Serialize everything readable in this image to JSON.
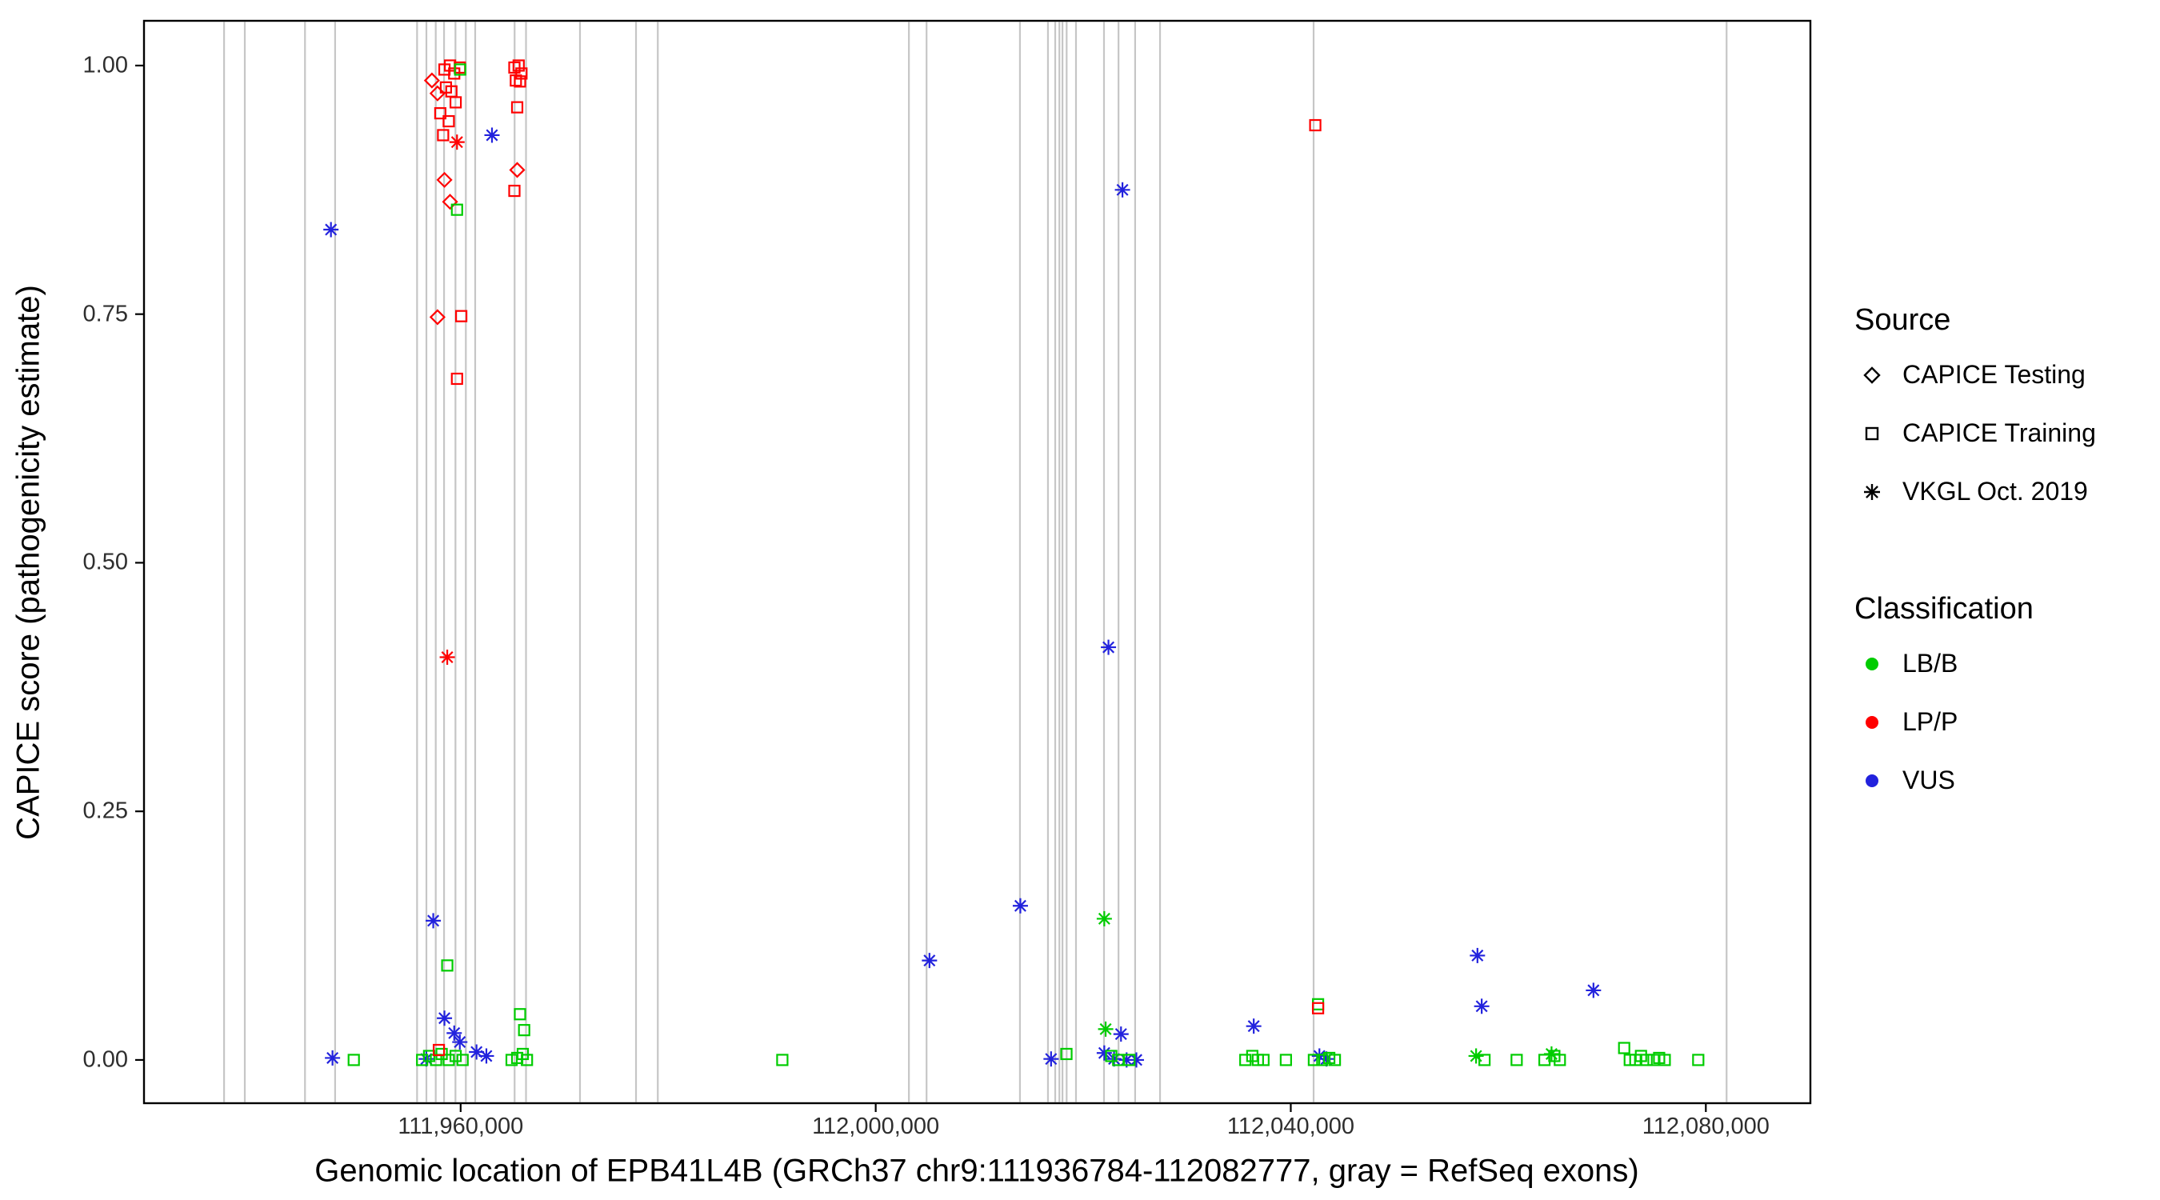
{
  "chart_data": {
    "type": "scatter",
    "title": "",
    "xlabel": "Genomic location of EPB41L4B (GRCh37 chr9:111936784-112082777, gray = RefSeq exons)",
    "ylabel": "CAPICE score (pathogenicity estimate)",
    "xlim": [
      111929484,
      112090077
    ],
    "ylim": [
      -0.0435,
      1.045
    ],
    "grid": false,
    "legend_position": "right",
    "x_ticks": [
      {
        "value": 111960000,
        "label": "111,960,000"
      },
      {
        "value": 112000000,
        "label": "112,000,000"
      },
      {
        "value": 112040000,
        "label": "112,040,000"
      },
      {
        "value": 112080000,
        "label": "112,080,000"
      }
    ],
    "y_ticks": [
      {
        "value": 0.0,
        "label": "0.00"
      },
      {
        "value": 0.25,
        "label": "0.25"
      },
      {
        "value": 0.5,
        "label": "0.50"
      },
      {
        "value": 0.75,
        "label": "0.75"
      },
      {
        "value": 1.0,
        "label": "1.00"
      }
    ],
    "exon_color": "#c6c6c6",
    "exons": [
      111937200,
      111939200,
      111945000,
      111947900,
      111955800,
      111956700,
      111957600,
      111958400,
      111959500,
      111960500,
      111961400,
      111965200,
      111966300,
      111971500,
      111976900,
      111979000,
      112003200,
      112004900,
      112013900,
      112016600,
      112017300,
      112017700,
      112018000,
      112018400,
      112019300,
      112022000,
      112023400,
      112025000,
      112027400,
      112042200,
      112082000
    ],
    "legend": {
      "source": {
        "title": "Source",
        "items": [
          {
            "id": "testing",
            "label": "CAPICE Testing",
            "shape": "diamond"
          },
          {
            "id": "training",
            "label": "CAPICE Training",
            "shape": "square"
          },
          {
            "id": "vkgl",
            "label": "VKGL Oct. 2019",
            "shape": "asterisk"
          }
        ]
      },
      "classification": {
        "title": "Classification",
        "items": [
          {
            "id": "lbb",
            "label": "LB/B",
            "color": "#00cc00"
          },
          {
            "id": "lpp",
            "label": "LP/P",
            "color": "#ff0000"
          },
          {
            "id": "vus",
            "label": "VUS",
            "color": "#2222dd"
          }
        ]
      }
    },
    "series_encoding": {
      "point_format": [
        "genomic_position",
        "capice_score",
        "shape_index",
        "class_index"
      ],
      "shape_index": [
        "CAPICE Testing",
        "CAPICE Training",
        "VKGL Oct. 2019"
      ],
      "class_index": [
        "LB/B",
        "LP/P",
        "VUS"
      ],
      "class_colors": [
        "#00cc00",
        "#ff0000",
        "#2222dd"
      ]
    },
    "points": [
      [
        111947500,
        0.835,
        2,
        2
      ],
      [
        111947650,
        0.002,
        2,
        2
      ],
      [
        111949700,
        0.0,
        1,
        0
      ],
      [
        111957230,
        0.985,
        0,
        1
      ],
      [
        111957770,
        0.972,
        0,
        1
      ],
      [
        111958440,
        0.996,
        1,
        1
      ],
      [
        111958980,
        1.0,
        1,
        1
      ],
      [
        111959380,
        0.992,
        1,
        1
      ],
      [
        111959920,
        0.998,
        1,
        1
      ],
      [
        111959950,
        0.996,
        1,
        0
      ],
      [
        111958580,
        0.978,
        1,
        1
      ],
      [
        111959110,
        0.974,
        1,
        1
      ],
      [
        111959520,
        0.963,
        1,
        1
      ],
      [
        111958040,
        0.952,
        1,
        1
      ],
      [
        111958850,
        0.944,
        1,
        1
      ],
      [
        111958310,
        0.93,
        1,
        1
      ],
      [
        111959650,
        0.923,
        2,
        1
      ],
      [
        111963020,
        0.93,
        2,
        2
      ],
      [
        111958440,
        0.885,
        0,
        1
      ],
      [
        111958980,
        0.863,
        0,
        1
      ],
      [
        111959650,
        0.855,
        1,
        0
      ],
      [
        111957770,
        0.747,
        0,
        1
      ],
      [
        111960060,
        0.748,
        1,
        1
      ],
      [
        111959650,
        0.685,
        1,
        1
      ],
      [
        111958710,
        0.405,
        2,
        1
      ],
      [
        111957360,
        0.14,
        2,
        2
      ],
      [
        111958710,
        0.095,
        1,
        0
      ],
      [
        111958440,
        0.042,
        2,
        2
      ],
      [
        111959380,
        0.027,
        2,
        2
      ],
      [
        111959920,
        0.018,
        2,
        2
      ],
      [
        111956690,
        0.001,
        2,
        2
      ],
      [
        111956290,
        0.0,
        1,
        0
      ],
      [
        111956960,
        0.004,
        1,
        0
      ],
      [
        111957630,
        0.0,
        1,
        0
      ],
      [
        111958170,
        0.006,
        1,
        0
      ],
      [
        111958850,
        0.0,
        1,
        0
      ],
      [
        111959520,
        0.004,
        1,
        0
      ],
      [
        111960190,
        0.0,
        1,
        0
      ],
      [
        111957900,
        0.01,
        1,
        1
      ],
      [
        111961530,
        0.008,
        2,
        2
      ],
      [
        111962480,
        0.004,
        2,
        2
      ],
      [
        111965180,
        0.998,
        1,
        1
      ],
      [
        111965590,
        1.0,
        1,
        1
      ],
      [
        111965860,
        0.992,
        1,
        1
      ],
      [
        111965320,
        0.985,
        1,
        1
      ],
      [
        111965720,
        0.984,
        1,
        1
      ],
      [
        111965450,
        0.958,
        1,
        1
      ],
      [
        111965450,
        0.895,
        0,
        1
      ],
      [
        111965180,
        0.874,
        1,
        1
      ],
      [
        111965720,
        0.046,
        1,
        0
      ],
      [
        111966120,
        0.03,
        1,
        0
      ],
      [
        111964910,
        0.0,
        1,
        0
      ],
      [
        111965450,
        0.002,
        1,
        0
      ],
      [
        111965990,
        0.006,
        1,
        0
      ],
      [
        111966390,
        0.0,
        1,
        0
      ],
      [
        111991000,
        0.0,
        1,
        0
      ],
      [
        112005180,
        0.1,
        2,
        2
      ],
      [
        112013940,
        0.155,
        2,
        2
      ],
      [
        112016900,
        0.001,
        2,
        2
      ],
      [
        112018380,
        0.006,
        1,
        0
      ],
      [
        112023780,
        0.875,
        2,
        2
      ],
      [
        112022430,
        0.415,
        2,
        2
      ],
      [
        112022030,
        0.142,
        2,
        0
      ],
      [
        112022160,
        0.031,
        2,
        0
      ],
      [
        112023640,
        0.026,
        2,
        2
      ],
      [
        112022030,
        0.007,
        2,
        2
      ],
      [
        112022970,
        0.001,
        2,
        2
      ],
      [
        112024180,
        0.0,
        2,
        2
      ],
      [
        112025120,
        0.0,
        2,
        2
      ],
      [
        112022700,
        0.004,
        1,
        0
      ],
      [
        112023370,
        0.0,
        1,
        0
      ],
      [
        112024450,
        0.0,
        1,
        0
      ],
      [
        112036430,
        0.034,
        2,
        2
      ],
      [
        112035620,
        0.0,
        1,
        0
      ],
      [
        112036290,
        0.004,
        1,
        0
      ],
      [
        112036830,
        0.0,
        1,
        0
      ],
      [
        112037370,
        0.0,
        1,
        0
      ],
      [
        112039530,
        0.0,
        1,
        0
      ],
      [
        112042360,
        0.94,
        1,
        1
      ],
      [
        112042630,
        0.056,
        1,
        0
      ],
      [
        112042630,
        0.052,
        1,
        1
      ],
      [
        112042760,
        0.004,
        2,
        2
      ],
      [
        112043440,
        0.001,
        2,
        2
      ],
      [
        112042230,
        0.0,
        1,
        0
      ],
      [
        112043040,
        0.0,
        1,
        0
      ],
      [
        112043710,
        0.002,
        1,
        0
      ],
      [
        112044250,
        0.0,
        1,
        0
      ],
      [
        112057990,
        0.105,
        2,
        2
      ],
      [
        112058400,
        0.054,
        2,
        2
      ],
      [
        112057860,
        0.004,
        2,
        0
      ],
      [
        112058670,
        0.0,
        1,
        0
      ],
      [
        112061770,
        0.0,
        1,
        0
      ],
      [
        112064450,
        0.0,
        1,
        0
      ],
      [
        112065400,
        0.004,
        1,
        0
      ],
      [
        112065930,
        0.0,
        1,
        0
      ],
      [
        112065130,
        0.006,
        2,
        0
      ],
      [
        112069170,
        0.07,
        2,
        2
      ],
      [
        112072130,
        0.012,
        1,
        0
      ],
      [
        112072670,
        0.0,
        1,
        0
      ],
      [
        112073210,
        0.0,
        1,
        0
      ],
      [
        112073750,
        0.004,
        1,
        0
      ],
      [
        112074290,
        0.0,
        1,
        0
      ],
      [
        112074960,
        0.0,
        1,
        0
      ],
      [
        112075500,
        0.002,
        1,
        0
      ],
      [
        112076040,
        0.0,
        1,
        0
      ],
      [
        112079270,
        0.0,
        1,
        0
      ]
    ]
  }
}
